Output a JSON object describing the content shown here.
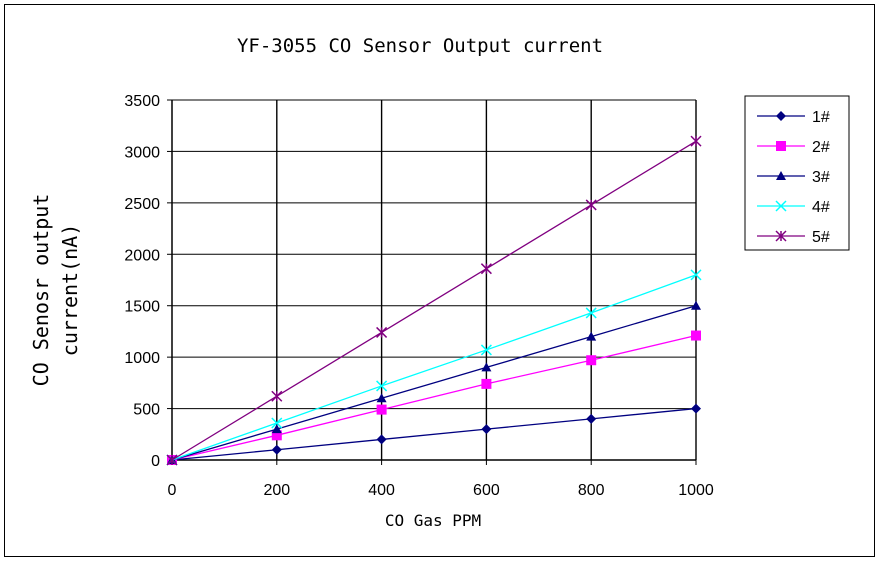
{
  "chart_data": {
    "type": "line",
    "title": "YF-3055 CO Sensor Output current",
    "xlabel": "CO Gas PPM",
    "ylabel_lines": [
      "CO Senosr output",
      "current(nA)"
    ],
    "x": [
      0,
      200,
      400,
      600,
      800,
      1000
    ],
    "x_ticks": [
      "0",
      "200",
      "400",
      "600",
      "800",
      "1000"
    ],
    "y_ticks": [
      "0",
      "500",
      "1000",
      "1500",
      "2000",
      "2500",
      "3000",
      "3500"
    ],
    "xlim": [
      0,
      1000
    ],
    "ylim": [
      0,
      3500
    ],
    "grid": true,
    "legend_position": "right",
    "series": [
      {
        "name": "1#",
        "color": "#000080",
        "marker": "diamond",
        "values": [
          0,
          100,
          200,
          300,
          400,
          500
        ]
      },
      {
        "name": "2#",
        "color": "#ff00ff",
        "marker": "square",
        "values": [
          0,
          240,
          490,
          740,
          970,
          1210
        ]
      },
      {
        "name": "3#",
        "color": "#000080",
        "marker": "triangle",
        "values": [
          0,
          300,
          600,
          900,
          1200,
          1500
        ]
      },
      {
        "name": "4#",
        "color": "#00ffff",
        "marker": "x",
        "values": [
          0,
          360,
          720,
          1070,
          1430,
          1800
        ]
      },
      {
        "name": "5#",
        "color": "#800080",
        "marker": "star",
        "values": [
          0,
          620,
          1240,
          1860,
          2480,
          3100
        ]
      }
    ]
  }
}
